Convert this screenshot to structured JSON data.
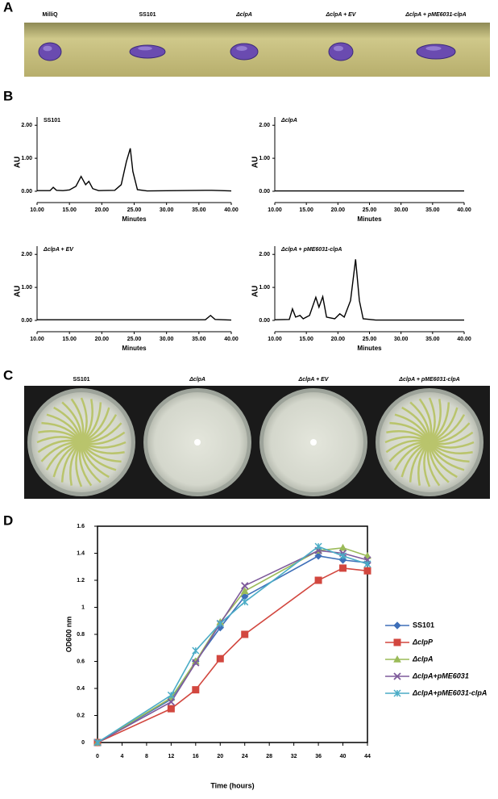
{
  "panel_labels": [
    "A",
    "B",
    "C",
    "D"
  ],
  "panel_a": {
    "labels": [
      "MilliQ",
      "SS101",
      "ΔclpA",
      "ΔclpA + EV",
      "ΔclpA + pME6031-clpA"
    ]
  },
  "panel_c": {
    "labels": [
      "SS101",
      "ΔclpA",
      "ΔclpA + EV",
      "ΔclpA + pME6031-clpA"
    ]
  },
  "chart_data": [
    {
      "type": "line",
      "title": "SS101",
      "x_label": "Minutes",
      "y_label": "AU",
      "color": "#000000",
      "x": [
        10,
        12,
        12.5,
        13,
        14,
        15,
        16,
        16.8,
        17.5,
        18,
        18.6,
        19.5,
        22,
        23,
        23.8,
        24.4,
        24.8,
        25.5,
        27,
        37,
        40
      ],
      "values": [
        0.02,
        0.02,
        0.12,
        0.03,
        0.02,
        0.04,
        0.15,
        0.45,
        0.2,
        0.3,
        0.08,
        0.02,
        0.03,
        0.2,
        0.9,
        1.3,
        0.6,
        0.05,
        0.01,
        0.03,
        0.01
      ],
      "xlim": [
        10,
        40
      ],
      "ylim": [
        0,
        2.25
      ],
      "xticks": [
        {
          "value": 10,
          "label": "10.00"
        },
        {
          "value": 15,
          "label": "15.00"
        },
        {
          "value": 20,
          "label": "20.00"
        },
        {
          "value": 25,
          "label": "25.00"
        },
        {
          "value": 30,
          "label": "30.00"
        },
        {
          "value": 35,
          "label": "35.00"
        },
        {
          "value": 40,
          "label": "40.00"
        }
      ],
      "yticks": [
        {
          "value": 0,
          "label": "0.00"
        },
        {
          "value": 1,
          "label": "1.00"
        },
        {
          "value": 2,
          "label": "2.00"
        }
      ]
    },
    {
      "type": "line",
      "title": "ΔclpA",
      "x_label": "Minutes",
      "y_label": "AU",
      "color": "#000000",
      "x": [
        10,
        40
      ],
      "values": [
        0.01,
        0.01
      ],
      "xlim": [
        10,
        40
      ],
      "ylim": [
        0,
        2.25
      ],
      "xticks": [
        {
          "value": 10,
          "label": "10.00"
        },
        {
          "value": 15,
          "label": "15.00"
        },
        {
          "value": 20,
          "label": "20.00"
        },
        {
          "value": 25,
          "label": "25.00"
        },
        {
          "value": 30,
          "label": "30.00"
        },
        {
          "value": 35,
          "label": "35.00"
        },
        {
          "value": 40,
          "label": "40.00"
        }
      ],
      "yticks": [
        {
          "value": 0,
          "label": "0.00"
        },
        {
          "value": 1,
          "label": "1.00"
        },
        {
          "value": 2,
          "label": "2.00"
        }
      ]
    },
    {
      "type": "line",
      "title": "ΔclpA + EV",
      "x_label": "Minutes",
      "y_label": "AU",
      "color": "#000000",
      "x": [
        10,
        36,
        36.8,
        37.5,
        40
      ],
      "values": [
        0.02,
        0.02,
        0.15,
        0.03,
        0.01
      ],
      "xlim": [
        10,
        40
      ],
      "ylim": [
        0,
        2.25
      ],
      "xticks": [
        {
          "value": 10,
          "label": "10.00"
        },
        {
          "value": 15,
          "label": "15.00"
        },
        {
          "value": 20,
          "label": "20.00"
        },
        {
          "value": 25,
          "label": "25.00"
        },
        {
          "value": 30,
          "label": "30.00"
        },
        {
          "value": 35,
          "label": "35.00"
        },
        {
          "value": 40,
          "label": "40.00"
        }
      ],
      "yticks": [
        {
          "value": 0,
          "label": "0.00"
        },
        {
          "value": 1,
          "label": "1.00"
        },
        {
          "value": 2,
          "label": "2.00"
        }
      ]
    },
    {
      "type": "line",
      "title": "ΔclpA + pME6031-clpA",
      "x_label": "Minutes",
      "y_label": "AU",
      "color": "#000000",
      "x": [
        10,
        12.3,
        12.8,
        13.3,
        14,
        14.5,
        15.5,
        16.5,
        17,
        17.6,
        18.2,
        19.5,
        20.3,
        21,
        22,
        22.8,
        23.4,
        24,
        26,
        40
      ],
      "values": [
        0.02,
        0.03,
        0.35,
        0.1,
        0.15,
        0.05,
        0.15,
        0.7,
        0.4,
        0.72,
        0.1,
        0.05,
        0.2,
        0.1,
        0.6,
        1.85,
        0.6,
        0.05,
        0.01,
        0.01
      ],
      "xlim": [
        10,
        40
      ],
      "ylim": [
        0,
        2.25
      ],
      "xticks": [
        {
          "value": 10,
          "label": "10.00"
        },
        {
          "value": 15,
          "label": "15.00"
        },
        {
          "value": 20,
          "label": "20.00"
        },
        {
          "value": 25,
          "label": "25.00"
        },
        {
          "value": 30,
          "label": "30.00"
        },
        {
          "value": 35,
          "label": "35.00"
        },
        {
          "value": 40,
          "label": "40.00"
        }
      ],
      "yticks": [
        {
          "value": 0,
          "label": "0.00"
        },
        {
          "value": 1,
          "label": "1.00"
        },
        {
          "value": 2,
          "label": "2.00"
        }
      ]
    },
    {
      "type": "growth",
      "x_label": "Time (hours)",
      "y_label": "OD600 nm",
      "x": [
        0,
        12,
        16,
        20,
        24,
        36,
        40,
        44
      ],
      "xlim": [
        0,
        44
      ],
      "ylim": [
        0,
        1.6
      ],
      "xticks": [
        0,
        4,
        8,
        12,
        16,
        20,
        24,
        28,
        32,
        36,
        40,
        44
      ],
      "yticks": [
        0,
        0.2,
        0.4,
        0.6,
        0.8,
        1,
        1.2,
        1.4,
        1.6
      ],
      "series": [
        {
          "name": "SS101",
          "color": "#3e6fb8",
          "marker": "diamond",
          "values": [
            0,
            0.32,
            0.6,
            0.85,
            1.08,
            1.38,
            1.35,
            1.33
          ]
        },
        {
          "name": "ΔclpP",
          "color": "#d2473f",
          "marker": "square",
          "values": [
            0,
            0.25,
            0.39,
            0.62,
            0.8,
            1.2,
            1.29,
            1.27
          ]
        },
        {
          "name": "ΔclpA",
          "color": "#9bbb59",
          "marker": "triangle",
          "values": [
            0,
            0.33,
            0.6,
            0.89,
            1.12,
            1.42,
            1.44,
            1.38
          ]
        },
        {
          "name": "ΔclpA+pME6031",
          "color": "#7e5a9b",
          "marker": "x",
          "values": [
            0,
            0.3,
            0.59,
            0.88,
            1.16,
            1.42,
            1.4,
            1.35
          ]
        },
        {
          "name": "ΔclpA+pME6031-clpA",
          "color": "#4bacc6",
          "marker": "star",
          "values": [
            0,
            0.35,
            0.68,
            0.88,
            1.04,
            1.45,
            1.38,
            1.32
          ]
        }
      ]
    }
  ]
}
